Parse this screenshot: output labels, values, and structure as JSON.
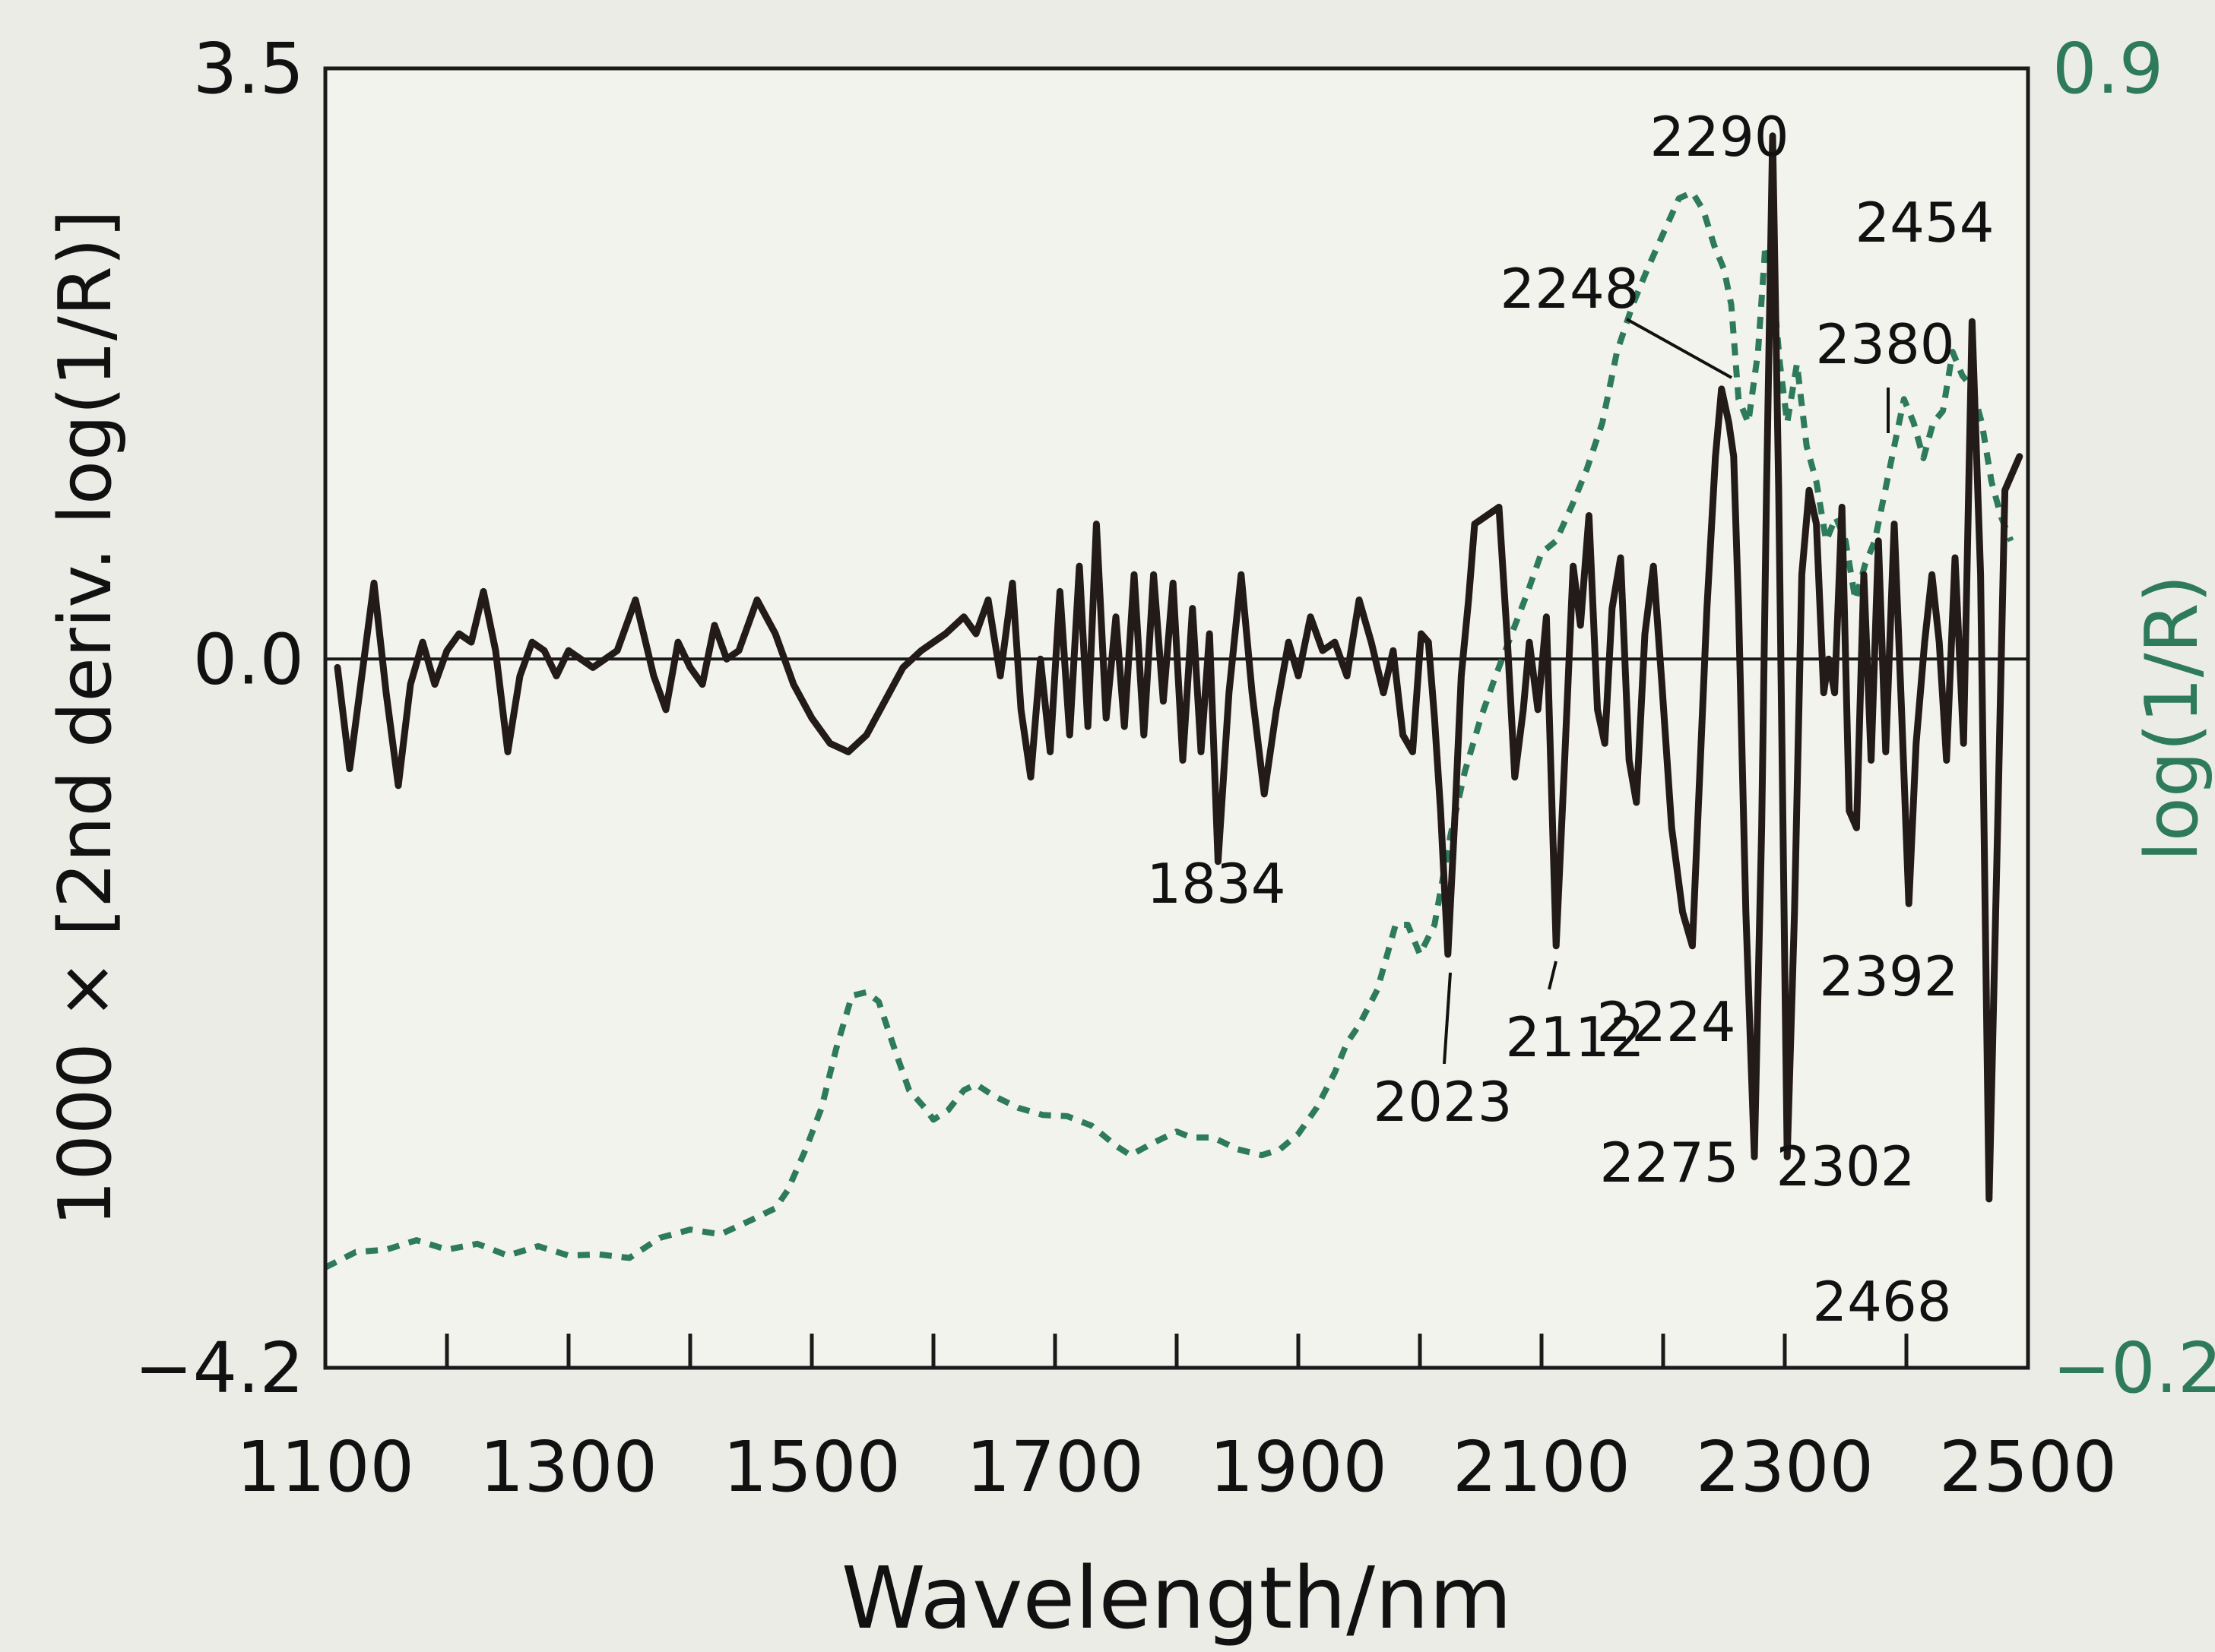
{
  "chart_data": {
    "type": "line",
    "xlabel": "Wavelength/nm",
    "ylabel_left": "1000 × [2nd deriv. log(1/R)]",
    "ylabel_right": "log(1/R)",
    "xlim": [
      1100,
      2500
    ],
    "ylim_left": [
      -4.2,
      3.5
    ],
    "ylim_right": [
      -0.2,
      0.9
    ],
    "x_ticks": [
      1100,
      1300,
      1500,
      1700,
      1900,
      2100,
      2300,
      2500
    ],
    "x_minor_ticks": [
      1200,
      1400,
      1600,
      1800,
      2000,
      2200,
      2400
    ],
    "y_left_tick_labels": [
      "3.5",
      "0.0",
      "−4.2"
    ],
    "y_right_tick_labels": [
      "0.9",
      "−0.2"
    ],
    "zero_line": true,
    "colors": {
      "deriv": "#231a1a",
      "absorbance": "#2e7a5c",
      "axis": "#1a1a1a"
    },
    "series": [
      {
        "key": "deriv",
        "axis": "left",
        "style": "solid",
        "points": [
          [
            1110,
            -0.05
          ],
          [
            1120,
            -0.65
          ],
          [
            1130,
            -0.1
          ],
          [
            1140,
            0.45
          ],
          [
            1150,
            -0.2
          ],
          [
            1160,
            -0.75
          ],
          [
            1170,
            -0.15
          ],
          [
            1180,
            0.1
          ],
          [
            1190,
            -0.15
          ],
          [
            1200,
            0.05
          ],
          [
            1210,
            0.15
          ],
          [
            1220,
            0.1
          ],
          [
            1230,
            0.4
          ],
          [
            1240,
            0.05
          ],
          [
            1250,
            -0.55
          ],
          [
            1260,
            -0.1
          ],
          [
            1270,
            0.1
          ],
          [
            1280,
            0.05
          ],
          [
            1290,
            -0.1
          ],
          [
            1300,
            0.05
          ],
          [
            1320,
            -0.05
          ],
          [
            1340,
            0.05
          ],
          [
            1355,
            0.35
          ],
          [
            1370,
            -0.1
          ],
          [
            1380,
            -0.3
          ],
          [
            1390,
            0.1
          ],
          [
            1400,
            -0.05
          ],
          [
            1410,
            -0.15
          ],
          [
            1420,
            0.2
          ],
          [
            1430,
            0.0
          ],
          [
            1440,
            0.05
          ],
          [
            1455,
            0.35
          ],
          [
            1470,
            0.15
          ],
          [
            1485,
            -0.15
          ],
          [
            1500,
            -0.35
          ],
          [
            1515,
            -0.5
          ],
          [
            1530,
            -0.55
          ],
          [
            1545,
            -0.45
          ],
          [
            1560,
            -0.25
          ],
          [
            1575,
            -0.05
          ],
          [
            1590,
            0.05
          ],
          [
            1610,
            0.15
          ],
          [
            1625,
            0.25
          ],
          [
            1635,
            0.15
          ],
          [
            1645,
            0.35
          ],
          [
            1655,
            -0.1
          ],
          [
            1665,
            0.45
          ],
          [
            1672,
            -0.3
          ],
          [
            1680,
            -0.7
          ],
          [
            1688,
            0.0
          ],
          [
            1696,
            -0.55
          ],
          [
            1704,
            0.4
          ],
          [
            1712,
            -0.45
          ],
          [
            1720,
            0.55
          ],
          [
            1727,
            -0.4
          ],
          [
            1734,
            0.8
          ],
          [
            1742,
            -0.35
          ],
          [
            1750,
            0.25
          ],
          [
            1757,
            -0.4
          ],
          [
            1765,
            0.5
          ],
          [
            1773,
            -0.45
          ],
          [
            1781,
            0.5
          ],
          [
            1789,
            -0.25
          ],
          [
            1797,
            0.45
          ],
          [
            1805,
            -0.6
          ],
          [
            1813,
            0.3
          ],
          [
            1820,
            -0.55
          ],
          [
            1827,
            0.15
          ],
          [
            1834,
            -1.2
          ],
          [
            1843,
            -0.2
          ],
          [
            1853,
            0.5
          ],
          [
            1862,
            -0.2
          ],
          [
            1872,
            -0.8
          ],
          [
            1882,
            -0.3
          ],
          [
            1892,
            0.1
          ],
          [
            1900,
            -0.1
          ],
          [
            1910,
            0.25
          ],
          [
            1920,
            0.05
          ],
          [
            1930,
            0.1
          ],
          [
            1940,
            -0.1
          ],
          [
            1950,
            0.35
          ],
          [
            1960,
            0.1
          ],
          [
            1970,
            -0.2
          ],
          [
            1978,
            0.05
          ],
          [
            1986,
            -0.45
          ],
          [
            1994,
            -0.55
          ],
          [
            2001,
            0.15
          ],
          [
            2007,
            0.1
          ],
          [
            2012,
            -0.35
          ],
          [
            2017,
            -0.9
          ],
          [
            2023,
            -1.75
          ],
          [
            2029,
            -0.9
          ],
          [
            2034,
            -0.1
          ],
          [
            2040,
            0.35
          ],
          [
            2045,
            0.8
          ],
          [
            2055,
            0.85
          ],
          [
            2065,
            0.9
          ],
          [
            2072,
            0.1
          ],
          [
            2078,
            -0.7
          ],
          [
            2085,
            -0.3
          ],
          [
            2090,
            0.1
          ],
          [
            2097,
            -0.3
          ],
          [
            2104,
            0.25
          ],
          [
            2112,
            -1.7
          ],
          [
            2119,
            -0.6
          ],
          [
            2126,
            0.55
          ],
          [
            2132,
            0.2
          ],
          [
            2139,
            0.85
          ],
          [
            2146,
            -0.3
          ],
          [
            2152,
            -0.5
          ],
          [
            2158,
            0.3
          ],
          [
            2165,
            0.6
          ],
          [
            2172,
            -0.6
          ],
          [
            2178,
            -0.85
          ],
          [
            2185,
            0.15
          ],
          [
            2192,
            0.55
          ],
          [
            2199,
            -0.15
          ],
          [
            2207,
            -1.0
          ],
          [
            2216,
            -1.5
          ],
          [
            2224,
            -1.7
          ],
          [
            2230,
            -0.7
          ],
          [
            2236,
            0.3
          ],
          [
            2243,
            1.2
          ],
          [
            2248,
            1.6
          ],
          [
            2254,
            1.4
          ],
          [
            2258,
            1.2
          ],
          [
            2262,
            0.3
          ],
          [
            2268,
            -1.5
          ],
          [
            2275,
            -2.95
          ],
          [
            2281,
            -1.0
          ],
          [
            2285,
            1.0
          ],
          [
            2290,
            3.1
          ],
          [
            2295,
            1.0
          ],
          [
            2302,
            -2.95
          ],
          [
            2308,
            -1.5
          ],
          [
            2314,
            0.5
          ],
          [
            2320,
            1.0
          ],
          [
            2326,
            0.8
          ],
          [
            2332,
            -0.2
          ],
          [
            2336,
            0.0
          ],
          [
            2341,
            -0.2
          ],
          [
            2347,
            0.9
          ],
          [
            2353,
            -0.9
          ],
          [
            2359,
            -1.0
          ],
          [
            2365,
            0.5
          ],
          [
            2371,
            -0.6
          ],
          [
            2377,
            0.7
          ],
          [
            2383,
            -0.55
          ],
          [
            2390,
            0.8
          ],
          [
            2396,
            -0.3
          ],
          [
            2402,
            -1.45
          ],
          [
            2408,
            -0.5
          ],
          [
            2415,
            0.1
          ],
          [
            2421,
            0.5
          ],
          [
            2427,
            0.1
          ],
          [
            2433,
            -0.6
          ],
          [
            2440,
            0.6
          ],
          [
            2447,
            -0.5
          ],
          [
            2454,
            2.0
          ],
          [
            2461,
            0.5
          ],
          [
            2468,
            -3.2
          ],
          [
            2475,
            -1.0
          ],
          [
            2481,
            1.0
          ],
          [
            2487,
            1.1
          ],
          [
            2493,
            1.2
          ]
        ]
      },
      {
        "key": "absorbance",
        "axis": "right",
        "style": "dashed",
        "points": [
          [
            1100,
            -0.115
          ],
          [
            1125,
            -0.102
          ],
          [
            1150,
            -0.1
          ],
          [
            1175,
            -0.092
          ],
          [
            1200,
            -0.1
          ],
          [
            1225,
            -0.095
          ],
          [
            1250,
            -0.105
          ],
          [
            1275,
            -0.097
          ],
          [
            1300,
            -0.105
          ],
          [
            1325,
            -0.104
          ],
          [
            1350,
            -0.107
          ],
          [
            1375,
            -0.09
          ],
          [
            1400,
            -0.083
          ],
          [
            1425,
            -0.087
          ],
          [
            1450,
            -0.075
          ],
          [
            1470,
            -0.065
          ],
          [
            1480,
            -0.05
          ],
          [
            1495,
            -0.015
          ],
          [
            1508,
            0.02
          ],
          [
            1520,
            0.07
          ],
          [
            1533,
            0.115
          ],
          [
            1545,
            0.118
          ],
          [
            1555,
            0.11
          ],
          [
            1568,
            0.07
          ],
          [
            1580,
            0.035
          ],
          [
            1593,
            0.02
          ],
          [
            1600,
            0.01
          ],
          [
            1612,
            0.018
          ],
          [
            1625,
            0.035
          ],
          [
            1635,
            0.04
          ],
          [
            1650,
            0.03
          ],
          [
            1670,
            0.02
          ],
          [
            1690,
            0.014
          ],
          [
            1710,
            0.013
          ],
          [
            1730,
            0.005
          ],
          [
            1750,
            -0.012
          ],
          [
            1762,
            -0.02
          ],
          [
            1780,
            -0.01
          ],
          [
            1800,
            0.0
          ],
          [
            1812,
            -0.005
          ],
          [
            1830,
            -0.005
          ],
          [
            1850,
            -0.015
          ],
          [
            1870,
            -0.02
          ],
          [
            1885,
            -0.015
          ],
          [
            1900,
            -0.002
          ],
          [
            1915,
            0.02
          ],
          [
            1930,
            0.05
          ],
          [
            1940,
            0.075
          ],
          [
            1950,
            0.09
          ],
          [
            1965,
            0.12
          ],
          [
            1980,
            0.175
          ],
          [
            1990,
            0.175
          ],
          [
            2000,
            0.15
          ],
          [
            2012,
            0.175
          ],
          [
            2025,
            0.25
          ],
          [
            2037,
            0.305
          ],
          [
            2050,
            0.35
          ],
          [
            2062,
            0.385
          ],
          [
            2075,
            0.42
          ],
          [
            2088,
            0.455
          ],
          [
            2100,
            0.49
          ],
          [
            2112,
            0.5
          ],
          [
            2125,
            0.53
          ],
          [
            2137,
            0.56
          ],
          [
            2150,
            0.6
          ],
          [
            2162,
            0.66
          ],
          [
            2175,
            0.7
          ],
          [
            2187,
            0.73
          ],
          [
            2200,
            0.76
          ],
          [
            2213,
            0.79
          ],
          [
            2224,
            0.795
          ],
          [
            2233,
            0.78
          ],
          [
            2242,
            0.75
          ],
          [
            2250,
            0.73
          ],
          [
            2256,
            0.7
          ],
          [
            2262,
            0.62
          ],
          [
            2270,
            0.6
          ],
          [
            2278,
            0.66
          ],
          [
            2284,
            0.75
          ],
          [
            2290,
            0.72
          ],
          [
            2296,
            0.65
          ],
          [
            2302,
            0.6
          ],
          [
            2310,
            0.65
          ],
          [
            2318,
            0.58
          ],
          [
            2326,
            0.55
          ],
          [
            2334,
            0.5
          ],
          [
            2342,
            0.52
          ],
          [
            2350,
            0.5
          ],
          [
            2358,
            0.45
          ],
          [
            2366,
            0.48
          ],
          [
            2374,
            0.5
          ],
          [
            2382,
            0.54
          ],
          [
            2390,
            0.58
          ],
          [
            2398,
            0.62
          ],
          [
            2406,
            0.6
          ],
          [
            2414,
            0.57
          ],
          [
            2422,
            0.6
          ],
          [
            2430,
            0.61
          ],
          [
            2438,
            0.66
          ],
          [
            2446,
            0.64
          ],
          [
            2454,
            0.63
          ],
          [
            2462,
            0.6
          ],
          [
            2470,
            0.55
          ],
          [
            2478,
            0.52
          ],
          [
            2486,
            0.5
          ]
        ]
      }
    ],
    "peak_labels": [
      {
        "text": "1834"
      },
      {
        "text": "2023"
      },
      {
        "text": "2112"
      },
      {
        "text": "2224"
      },
      {
        "text": "2248"
      },
      {
        "text": "2275"
      },
      {
        "text": "2290"
      },
      {
        "text": "2302"
      },
      {
        "text": "2380"
      },
      {
        "text": "2392"
      },
      {
        "text": "2454"
      },
      {
        "text": "2468"
      }
    ]
  }
}
